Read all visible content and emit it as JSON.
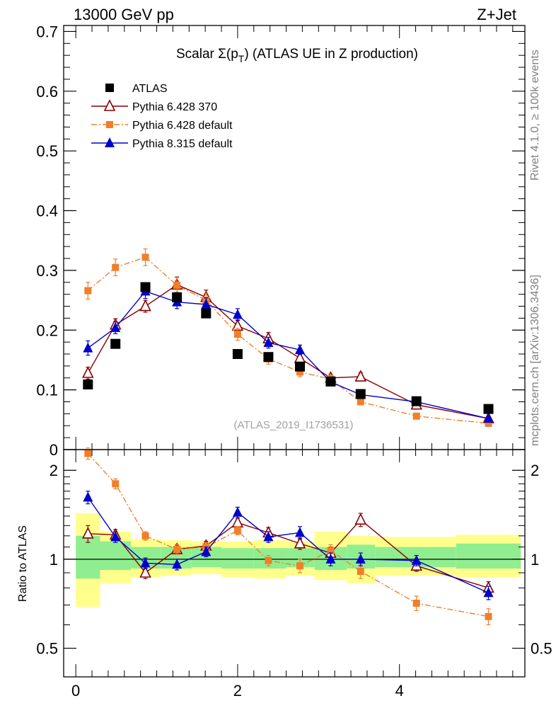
{
  "header": {
    "left": "13000 GeV pp",
    "right": "Z+Jet"
  },
  "side_labels": {
    "rivet": "Rivet 4.1.0, ≥ 100k events",
    "mcplots": "mcplots.cern.ch [arXiv:1306.3436]"
  },
  "colors": {
    "atlas": "#000000",
    "pythia6_370": "#8b0000",
    "pythia6_default": "#f07f2a",
    "pythia8_default": "#0000cc",
    "band_inner": "#90ee90",
    "band_outer": "#ffff8c"
  },
  "chart_data": [
    {
      "panel": "main",
      "type": "scatter",
      "title": "Scalar Σ(p_T) (ATLAS UE in Z production)",
      "title_parts": {
        "prefix": "Scalar Σ(p",
        "sub": "T",
        "suffix": ") (ATLAS UE in Z production)"
      },
      "watermark": "(ATLAS_2019_I1736531)",
      "xlim": [
        -0.15,
        5.55
      ],
      "ylim": [
        0,
        0.71
      ],
      "xticks": [
        0,
        2,
        4
      ],
      "yticks": [
        0,
        0.1,
        0.2,
        0.3,
        0.4,
        0.5,
        0.6,
        0.7
      ],
      "ytick_labels": [
        "0",
        "0.1",
        "0.2",
        "0.3",
        "0.4",
        "0.5",
        "0.6",
        "0.7"
      ],
      "legend_position": "top-left",
      "series": [
        {
          "name": "ATLAS",
          "style": "data",
          "x": [
            0.15,
            0.49,
            0.86,
            1.25,
            1.61,
            2.0,
            2.38,
            2.77,
            3.15,
            3.52,
            4.21,
            5.1
          ],
          "values": [
            0.109,
            0.177,
            0.272,
            0.255,
            0.228,
            0.16,
            0.155,
            0.139,
            0.114,
            0.093,
            0.081,
            0.068
          ],
          "errors": [
            0,
            0,
            0,
            0,
            0,
            0,
            0,
            0,
            0,
            0,
            0,
            0
          ]
        },
        {
          "name": "Pythia 6.428 370",
          "style": "open-triangle-solid",
          "x": [
            0.15,
            0.49,
            0.86,
            1.25,
            1.61,
            2.0,
            2.38,
            2.77,
            3.15,
            3.52,
            4.21,
            5.1
          ],
          "values": [
            0.128,
            0.209,
            0.24,
            0.276,
            0.255,
            0.207,
            0.186,
            0.153,
            0.12,
            0.122,
            0.075,
            0.052
          ],
          "errors": [
            0.01,
            0.01,
            0.01,
            0.013,
            0.012,
            0.01,
            0.01,
            0.008,
            0.006,
            0.007,
            0.004,
            0.003
          ]
        },
        {
          "name": "Pythia 6.428 default",
          "style": "square-dashdot",
          "x": [
            0.15,
            0.49,
            0.86,
            1.25,
            1.61,
            2.0,
            2.38,
            2.77,
            3.15,
            3.52,
            4.21,
            5.1
          ],
          "values": [
            0.266,
            0.305,
            0.322,
            0.275,
            0.25,
            0.193,
            0.152,
            0.13,
            0.118,
            0.08,
            0.056,
            0.044
          ],
          "errors": [
            0.014,
            0.014,
            0.014,
            0.013,
            0.012,
            0.01,
            0.009,
            0.008,
            0.007,
            0.005,
            0.004,
            0.003
          ]
        },
        {
          "name": "Pythia 8.315 default",
          "style": "filled-triangle-solid",
          "x": [
            0.15,
            0.49,
            0.86,
            1.25,
            1.61,
            2.0,
            2.38,
            2.77,
            3.15,
            3.52,
            4.21,
            5.1
          ],
          "values": [
            0.17,
            0.204,
            0.265,
            0.247,
            0.243,
            0.226,
            0.179,
            0.167,
            0.113,
            0.092,
            0.08,
            0.052
          ],
          "errors": [
            0.012,
            0.01,
            0.012,
            0.011,
            0.011,
            0.01,
            0.009,
            0.008,
            0.006,
            0.005,
            0.004,
            0.003
          ]
        }
      ]
    },
    {
      "panel": "ratio",
      "type": "scatter",
      "ylabel": "Ratio to ATLAS",
      "xlim": [
        -0.15,
        5.55
      ],
      "ylim": [
        0.4,
        2.35
      ],
      "yscale": "log",
      "xticks": [
        0,
        2,
        4
      ],
      "xtick_labels": [
        "0",
        "2",
        "4"
      ],
      "yticks": [
        0.5,
        1,
        2
      ],
      "ytick_labels": [
        "0.5",
        "1",
        "2"
      ],
      "bands": [
        {
          "x0": 0.0,
          "x1": 0.3,
          "inner": [
            0.86,
            1.2
          ],
          "outer": [
            0.69,
            1.43
          ]
        },
        {
          "x0": 0.3,
          "x1": 0.68,
          "inner": [
            0.92,
            1.15
          ],
          "outer": [
            0.83,
            1.24
          ]
        },
        {
          "x0": 0.68,
          "x1": 1.05,
          "inner": [
            0.93,
            1.1
          ],
          "outer": [
            0.87,
            1.17
          ]
        },
        {
          "x0": 1.05,
          "x1": 1.43,
          "inner": [
            0.93,
            1.1
          ],
          "outer": [
            0.88,
            1.16
          ]
        },
        {
          "x0": 1.43,
          "x1": 1.8,
          "inner": [
            0.94,
            1.1
          ],
          "outer": [
            0.89,
            1.15
          ]
        },
        {
          "x0": 1.8,
          "x1": 2.2,
          "inner": [
            0.93,
            1.09
          ],
          "outer": [
            0.87,
            1.15
          ]
        },
        {
          "x0": 2.2,
          "x1": 2.6,
          "inner": [
            0.93,
            1.09
          ],
          "outer": [
            0.86,
            1.16
          ]
        },
        {
          "x0": 2.6,
          "x1": 2.95,
          "inner": [
            0.94,
            1.09
          ],
          "outer": [
            0.88,
            1.15
          ]
        },
        {
          "x0": 2.95,
          "x1": 3.35,
          "inner": [
            0.92,
            1.1
          ],
          "outer": [
            0.85,
            1.24
          ]
        },
        {
          "x0": 3.35,
          "x1": 3.7,
          "inner": [
            0.93,
            1.12
          ],
          "outer": [
            0.83,
            1.2
          ]
        },
        {
          "x0": 3.7,
          "x1": 4.7,
          "inner": [
            0.94,
            1.1
          ],
          "outer": [
            0.88,
            1.19
          ]
        },
        {
          "x0": 4.7,
          "x1": 5.5,
          "inner": [
            0.93,
            1.13
          ],
          "outer": [
            0.87,
            1.21
          ]
        }
      ],
      "series": [
        {
          "name": "Pythia 6.428 370",
          "style": "open-triangle-solid",
          "x": [
            0.15,
            0.49,
            0.86,
            1.25,
            1.61,
            2.0,
            2.38,
            2.77,
            3.15,
            3.52,
            4.21,
            5.1
          ],
          "values": [
            1.22,
            1.21,
            0.9,
            1.08,
            1.11,
            1.33,
            1.23,
            1.13,
            1.05,
            1.36,
            0.95,
            0.8
          ],
          "errors": [
            0.08,
            0.05,
            0.04,
            0.04,
            0.04,
            0.05,
            0.05,
            0.05,
            0.05,
            0.07,
            0.04,
            0.04
          ]
        },
        {
          "name": "Pythia 6.428 default",
          "style": "square-dashdot",
          "x": [
            0.15,
            0.49,
            0.86,
            1.25,
            1.61,
            2.0,
            2.38,
            2.77,
            3.15,
            3.52,
            4.21,
            5.1
          ],
          "values": [
            2.28,
            1.8,
            1.2,
            1.08,
            1.1,
            1.25,
            0.99,
            0.95,
            1.07,
            0.91,
            0.71,
            0.64
          ],
          "errors": [
            0.1,
            0.07,
            0.04,
            0.04,
            0.04,
            0.04,
            0.04,
            0.05,
            0.05,
            0.05,
            0.04,
            0.04
          ]
        },
        {
          "name": "Pythia 8.315 default",
          "style": "filled-triangle-solid",
          "x": [
            0.15,
            0.49,
            0.86,
            1.25,
            1.61,
            2.0,
            2.38,
            2.77,
            3.15,
            3.52,
            4.21,
            5.1
          ],
          "values": [
            1.62,
            1.19,
            0.97,
            0.96,
            1.06,
            1.44,
            1.19,
            1.23,
            1.0,
            1.0,
            0.99,
            0.77
          ],
          "errors": [
            0.08,
            0.05,
            0.04,
            0.04,
            0.04,
            0.06,
            0.05,
            0.06,
            0.05,
            0.05,
            0.04,
            0.04
          ]
        }
      ]
    }
  ]
}
